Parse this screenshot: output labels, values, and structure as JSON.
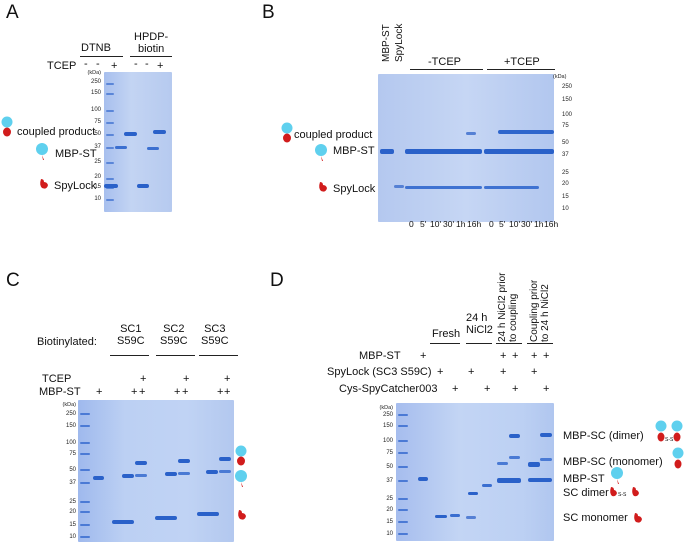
{
  "panels": {
    "A": {
      "letter": "A",
      "headers": {
        "dtnb": "DTNB",
        "hpdp": "HPDP-\nbiotin",
        "tcep": "TCEP",
        "tcep_signs": [
          "-",
          "-",
          "+",
          "-",
          "-",
          "+"
        ]
      },
      "mw_unit": "(kDa)",
      "mw": [
        "250",
        "150",
        "100",
        "75",
        "50",
        "37",
        "25",
        "20",
        "15",
        "10"
      ],
      "labels": {
        "coupled": "coupled product",
        "mbpst": "MBP-ST",
        "spylock": "SpyLock"
      }
    },
    "B": {
      "letter": "B",
      "vertical": [
        "MBP-ST",
        "SpyLock"
      ],
      "groups": [
        "-TCEP",
        "+TCEP"
      ],
      "mw_unit": "(kDa)",
      "mw": [
        "250",
        "150",
        "100",
        "75",
        "50",
        "37",
        "25",
        "20",
        "15",
        "10"
      ],
      "times": [
        "0",
        "5'",
        "10'",
        "30'",
        "1h",
        "16h",
        "0",
        "5'",
        "10'",
        "30'",
        "1h",
        "16h"
      ],
      "labels": {
        "coupled": "coupled product",
        "mbpst": "MBP-ST",
        "spylock": "SpyLock"
      }
    },
    "C": {
      "letter": "C",
      "biotinylated": "Biotinylated:",
      "sc": [
        "SC1\nS59C",
        "SC2\nS59C",
        "SC3\nS59C"
      ],
      "tcep": "TCEP",
      "mbpst": "MBP-ST",
      "plus": "+",
      "mw_unit": "(kDa)",
      "mw": [
        "250",
        "150",
        "100",
        "75",
        "50",
        "37",
        "25",
        "20",
        "15",
        "10"
      ]
    },
    "D": {
      "letter": "D",
      "rows": [
        "MBP-ST",
        "SpyLock (SC3 S59C)",
        "Cys-SpyCatcher003"
      ],
      "conditions": [
        "Fresh",
        "24 h\nNiCl2",
        "24 h NiCl2 prior\nto coupling",
        "Coupling prior\nto 24 h NiCl2"
      ],
      "plus": "+",
      "mw_unit": "(kDa)",
      "mw": [
        "250",
        "150",
        "100",
        "75",
        "50",
        "37",
        "25",
        "20",
        "15",
        "10"
      ],
      "labels": {
        "dimer": "MBP-SC (dimer)",
        "monomer": "MBP-SC (monomer)",
        "mbpst": "MBP-ST",
        "scdimer": "SC dimer",
        "scmono": "SC monomer",
        "ss": "S-S"
      }
    }
  },
  "colors": {
    "gel": "#b9cdf0",
    "band": "#2a61c9",
    "cyan": "#5fd0ee",
    "red": "#d11c1c"
  }
}
